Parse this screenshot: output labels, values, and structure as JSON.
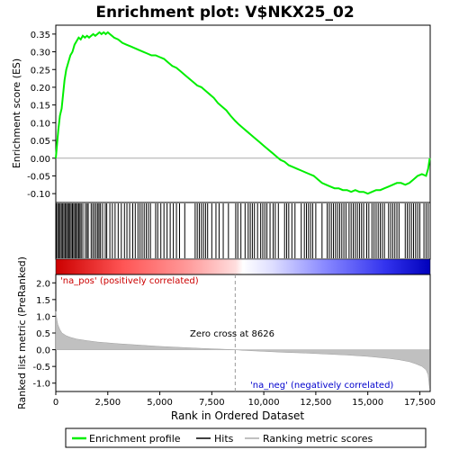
{
  "chart_data": {
    "type": "line",
    "title": "Enrichment plot: V$NKX25_02",
    "top_panel": {
      "ylabel": "Enrichment score (ES)",
      "ylim": [
        -0.125,
        0.375
      ],
      "yticks": [
        -0.1,
        -0.05,
        0.0,
        0.05,
        0.1,
        0.15,
        0.2,
        0.25,
        0.3,
        0.35
      ],
      "ytick_labels": [
        "-0.10",
        "-0.05",
        "0.00",
        "0.05",
        "0.10",
        "0.15",
        "0.20",
        "0.25",
        "0.30",
        "0.35"
      ],
      "series": [
        {
          "name": "Enrichment profile",
          "color": "#00ee00",
          "x": [
            0,
            60,
            120,
            200,
            280,
            350,
            420,
            500,
            600,
            700,
            800,
            900,
            1000,
            1100,
            1200,
            1300,
            1400,
            1500,
            1600,
            1700,
            1800,
            1900,
            2000,
            2100,
            2200,
            2300,
            2400,
            2500,
            2600,
            2700,
            2800,
            3000,
            3200,
            3400,
            3600,
            3800,
            4000,
            4200,
            4400,
            4600,
            4800,
            5000,
            5200,
            5400,
            5600,
            5800,
            6000,
            6200,
            6400,
            6600,
            6800,
            7000,
            7200,
            7400,
            7600,
            7800,
            8000,
            8200,
            8400,
            8626,
            8800,
            9000,
            9200,
            9400,
            9600,
            9800,
            10000,
            10200,
            10400,
            10600,
            10800,
            11000,
            11200,
            11400,
            11600,
            11800,
            12000,
            12200,
            12400,
            12600,
            12800,
            13000,
            13200,
            13400,
            13600,
            13800,
            14000,
            14200,
            14400,
            14600,
            14800,
            15000,
            15200,
            15400,
            15600,
            15800,
            16000,
            16200,
            16400,
            16600,
            16800,
            17000,
            17200,
            17400,
            17600,
            17800,
            17900,
            17980
          ],
          "y": [
            0.0,
            0.04,
            0.08,
            0.12,
            0.14,
            0.18,
            0.22,
            0.25,
            0.27,
            0.29,
            0.3,
            0.32,
            0.33,
            0.34,
            0.335,
            0.345,
            0.34,
            0.345,
            0.34,
            0.345,
            0.35,
            0.345,
            0.35,
            0.355,
            0.35,
            0.355,
            0.35,
            0.355,
            0.35,
            0.345,
            0.34,
            0.335,
            0.325,
            0.32,
            0.315,
            0.31,
            0.305,
            0.3,
            0.295,
            0.29,
            0.29,
            0.285,
            0.28,
            0.27,
            0.26,
            0.255,
            0.245,
            0.235,
            0.225,
            0.215,
            0.205,
            0.2,
            0.19,
            0.18,
            0.17,
            0.155,
            0.145,
            0.135,
            0.12,
            0.105,
            0.095,
            0.085,
            0.075,
            0.065,
            0.055,
            0.045,
            0.035,
            0.025,
            0.015,
            0.005,
            -0.005,
            -0.01,
            -0.02,
            -0.025,
            -0.03,
            -0.035,
            -0.04,
            -0.045,
            -0.05,
            -0.06,
            -0.07,
            -0.075,
            -0.08,
            -0.085,
            -0.085,
            -0.09,
            -0.09,
            -0.095,
            -0.09,
            -0.095,
            -0.095,
            -0.1,
            -0.095,
            -0.09,
            -0.09,
            -0.085,
            -0.08,
            -0.075,
            -0.07,
            -0.07,
            -0.075,
            -0.07,
            -0.06,
            -0.05,
            -0.045,
            -0.05,
            -0.03,
            0.0
          ]
        }
      ]
    },
    "hits_panel": {
      "name": "Hits",
      "color": "#000000",
      "hit_ranks": [
        30,
        90,
        150,
        210,
        270,
        330,
        390,
        450,
        510,
        570,
        620,
        680,
        740,
        800,
        860,
        920,
        980,
        1040,
        1100,
        1160,
        1220,
        1300,
        1420,
        1500,
        1560,
        1700,
        1780,
        1860,
        1940,
        2020,
        2080,
        2150,
        2250,
        2380,
        2450,
        2600,
        2720,
        2850,
        3000,
        3150,
        3300,
        3420,
        3550,
        3700,
        3820,
        3950,
        4050,
        4150,
        4250,
        4350,
        4450,
        4550,
        4800,
        4900,
        5050,
        5200,
        5350,
        5500,
        5650,
        5800,
        5950,
        6200,
        6700,
        6800,
        6900,
        7000,
        7100,
        7200,
        7300,
        7500,
        7700,
        7850,
        8050,
        8300,
        8650,
        8750,
        8900,
        9100,
        9250,
        9350,
        9450,
        9550,
        9700,
        9850,
        9950,
        10050,
        10150,
        10300,
        10450,
        10550,
        10700,
        11000,
        11100,
        11200,
        11350,
        11500,
        11800,
        11950,
        12050,
        12150,
        12250,
        12350,
        12500,
        12800,
        13050,
        13150,
        13250,
        13350,
        13450,
        13550,
        13650,
        13750,
        13850,
        13950,
        14100,
        14200,
        14300,
        14400,
        14500,
        14600,
        14700,
        14800,
        14950,
        15050,
        15200,
        15300,
        15400,
        15500,
        15600,
        15700,
        15800,
        16000,
        16100,
        16200,
        16300,
        16400,
        16500,
        16800,
        16900,
        17000,
        17100,
        17200,
        17300,
        17400,
        17500,
        17700,
        17800,
        17900
      ]
    },
    "rank_panel": {
      "ylabel": "Ranked list metric (PreRanked)",
      "xlabel": "Rank in Ordered Dataset",
      "name": "Ranking metric scores",
      "color": "#c0c0c0",
      "ylim": [
        -1.25,
        2.25
      ],
      "yticks": [
        -1.0,
        -0.5,
        0.0,
        0.5,
        1.0,
        1.5,
        2.0
      ],
      "ytick_labels": [
        "-1.0",
        "-0.5",
        "0.0",
        "0.5",
        "1.0",
        "1.5",
        "2.0"
      ],
      "x": [
        0,
        50,
        100,
        200,
        300,
        500,
        700,
        1000,
        1500,
        2000,
        3000,
        4000,
        5000,
        6000,
        7000,
        8000,
        8626,
        9000,
        10000,
        11000,
        12000,
        13000,
        14000,
        15000,
        16000,
        16500,
        17000,
        17300,
        17600,
        17800,
        17900,
        17980
      ],
      "y": [
        1.15,
        0.9,
        0.75,
        0.6,
        0.5,
        0.42,
        0.37,
        0.32,
        0.27,
        0.23,
        0.18,
        0.14,
        0.1,
        0.07,
        0.04,
        0.015,
        0.0,
        -0.02,
        -0.05,
        -0.08,
        -0.1,
        -0.13,
        -0.16,
        -0.2,
        -0.26,
        -0.3,
        -0.36,
        -0.42,
        -0.5,
        -0.6,
        -0.75,
        -1.2
      ]
    },
    "xlim": [
      0,
      18000
    ],
    "xticks": [
      0,
      2500,
      5000,
      7500,
      10000,
      12500,
      15000,
      17500
    ],
    "xtick_labels": [
      "0",
      "2,500",
      "5,000",
      "7,500",
      "10,000",
      "12,500",
      "15,000",
      "17,500"
    ],
    "zero_cross_rank": 8626,
    "annotations": {
      "zero_cross": "Zero cross at 8626",
      "na_pos": "'na_pos' (positively correlated)",
      "na_neg": "'na_neg' (negatively correlated)"
    },
    "legend": {
      "placement": "bottom",
      "entries": [
        "Enrichment profile",
        "Hits",
        "Ranking metric scores"
      ]
    },
    "colors": {
      "positive": "#ff0000",
      "negative": "#0000ff",
      "neutral": "#ffffff",
      "na_pos_text": "#cc0000",
      "na_neg_text": "#0000cc"
    }
  }
}
